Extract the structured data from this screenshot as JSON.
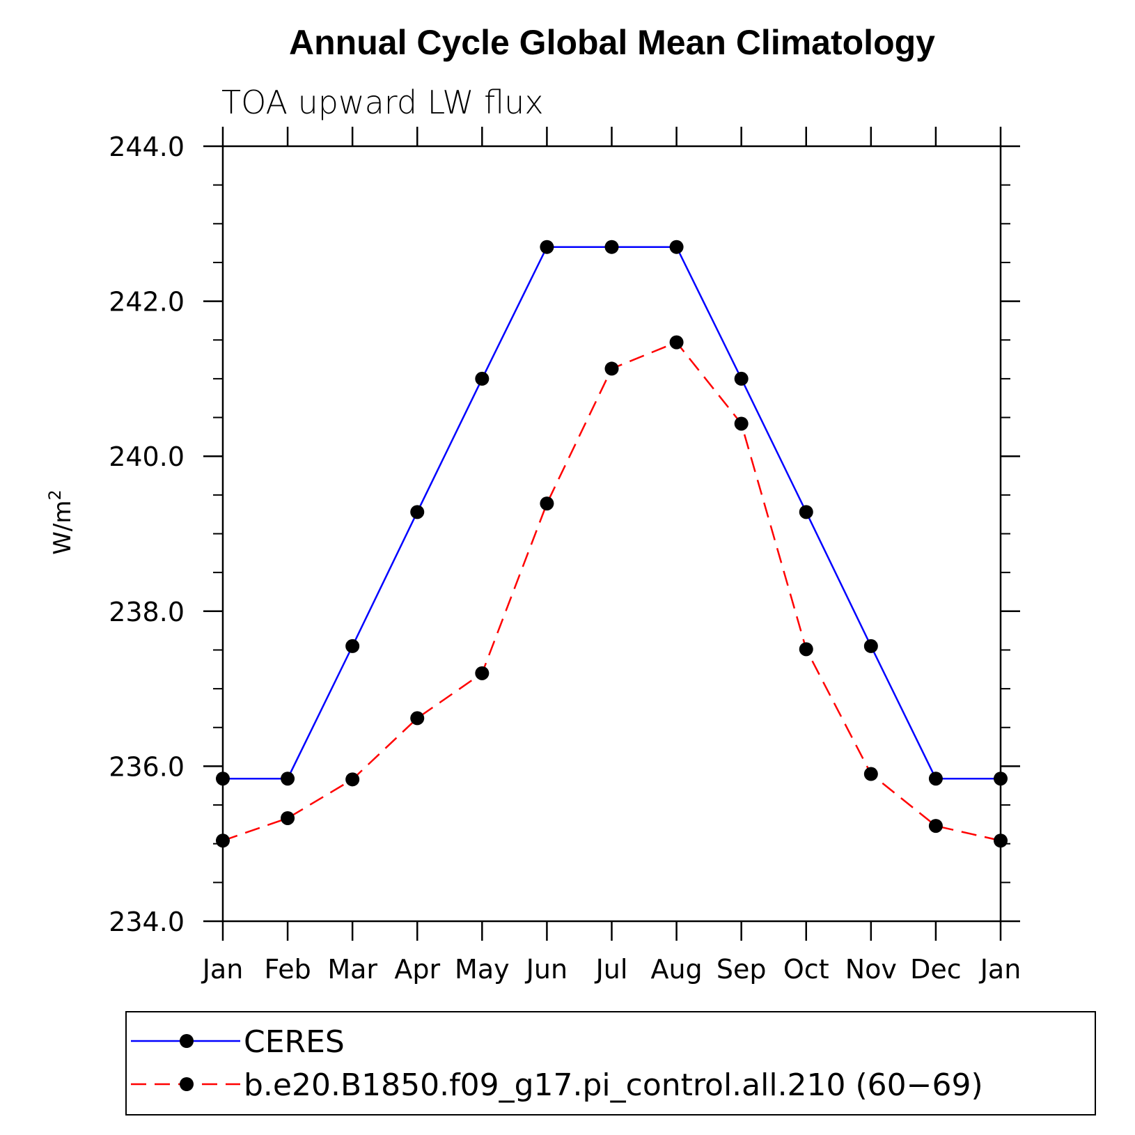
{
  "chart_data": {
    "type": "line",
    "title": "Annual Cycle Global Mean Climatology",
    "subtitle": "TOA upward LW flux",
    "ylabel": "W/m",
    "ylabel_superscript": "2",
    "xlabel": "",
    "categories": [
      "Jan",
      "Feb",
      "Mar",
      "Apr",
      "May",
      "Jun",
      "Jul",
      "Aug",
      "Sep",
      "Oct",
      "Nov",
      "Dec",
      "Jan"
    ],
    "ylim": [
      234.0,
      244.0
    ],
    "yticks": [
      "234.0",
      "236.0",
      "238.0",
      "240.0",
      "242.0",
      "244.0"
    ],
    "grid": false,
    "legend_position": "bottom",
    "series": [
      {
        "name": "CERES",
        "color": "#0000ff",
        "style": "solid",
        "values": [
          235.84,
          235.84,
          237.55,
          239.28,
          241.0,
          242.7,
          242.7,
          242.7,
          241.0,
          239.28,
          237.55,
          235.84,
          235.84
        ]
      },
      {
        "name": "b.e20.B1850.f09_g17.pi_control.all.210 (60−69)",
        "color": "#ff0000",
        "style": "dashed",
        "values": [
          235.04,
          235.33,
          235.83,
          236.62,
          237.2,
          239.39,
          241.13,
          241.47,
          240.42,
          237.51,
          235.9,
          235.23,
          235.04
        ]
      }
    ]
  }
}
